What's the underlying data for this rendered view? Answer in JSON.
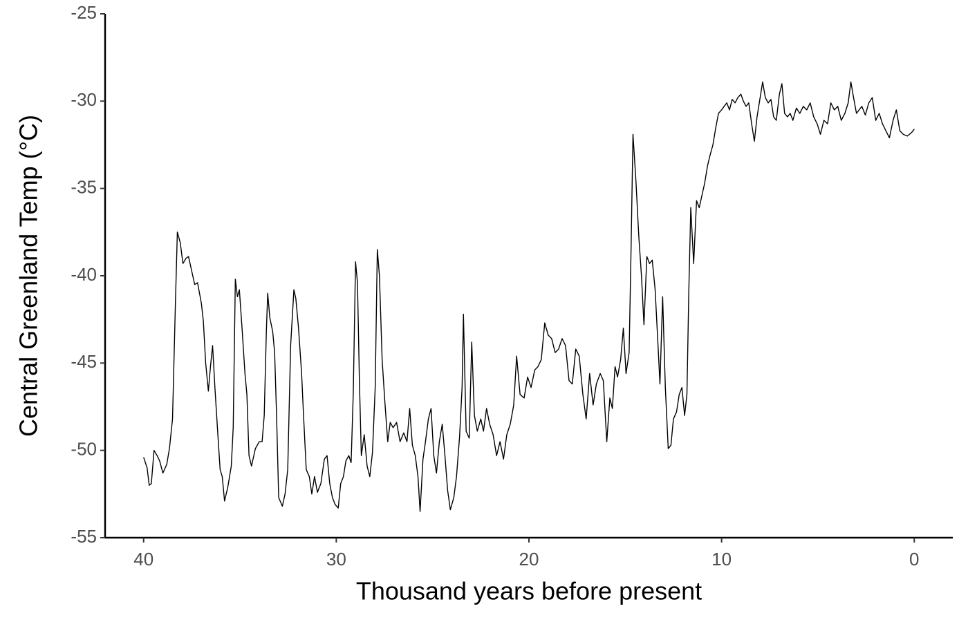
{
  "chart_data": {
    "type": "line",
    "x_label": "Thousand years before present",
    "y_label": "Central Greenland Temp (°C)",
    "color": "#000000",
    "xlim": [
      42,
      -2
    ],
    "xticks": [
      40,
      30,
      20,
      10,
      0
    ],
    "ylim": [
      -55,
      -25
    ],
    "yticks": [
      -55,
      -50,
      -45,
      -40,
      -35,
      -30,
      -25
    ],
    "grid": false,
    "x": [
      40,
      39.82,
      39.71,
      39.6,
      39.46,
      39.3,
      39.17,
      39.0,
      38.8,
      38.66,
      38.5,
      38.36,
      38.25,
      38.1,
      37.96,
      37.8,
      37.67,
      37.53,
      37.35,
      37.2,
      37.0,
      36.9,
      36.78,
      36.64,
      36.53,
      36.42,
      36.3,
      36.17,
      36.03,
      35.92,
      35.8,
      35.63,
      35.45,
      35.35,
      35.24,
      35.13,
      35.03,
      34.88,
      34.74,
      34.64,
      34.53,
      34.4,
      34.2,
      34.0,
      33.85,
      33.74,
      33.63,
      33.56,
      33.45,
      33.3,
      33.2,
      33.1,
      32.99,
      32.8,
      32.66,
      32.52,
      32.37,
      32.2,
      32.1,
      31.96,
      31.8,
      31.7,
      31.56,
      31.4,
      31.27,
      31.13,
      30.98,
      30.8,
      30.62,
      30.48,
      30.34,
      30.2,
      30.06,
      29.9,
      29.77,
      29.63,
      29.5,
      29.35,
      29.23,
      29.12,
      29.0,
      28.9,
      28.8,
      28.7,
      28.55,
      28.4,
      28.26,
      28.12,
      27.98,
      27.87,
      27.76,
      27.62,
      27.48,
      27.33,
      27.2,
      27.05,
      26.87,
      26.69,
      26.5,
      26.33,
      26.19,
      26.05,
      25.9,
      25.76,
      25.65,
      25.5,
      25.37,
      25.22,
      25.08,
      24.94,
      24.8,
      24.65,
      24.5,
      24.36,
      24.22,
      24.08,
      23.9,
      23.76,
      23.6,
      23.47,
      23.4,
      23.26,
      23.1,
      22.97,
      22.83,
      22.68,
      22.5,
      22.36,
      22.2,
      22.04,
      21.86,
      21.68,
      21.5,
      21.32,
      21.15,
      20.97,
      20.79,
      20.64,
      20.46,
      20.25,
      20.07,
      19.89,
      19.7,
      19.53,
      19.36,
      19.18,
      19.0,
      18.82,
      18.64,
      18.46,
      18.28,
      18.1,
      17.92,
      17.75,
      17.57,
      17.39,
      17.2,
      17.03,
      16.85,
      16.67,
      16.5,
      16.3,
      16.14,
      15.96,
      15.8,
      15.67,
      15.53,
      15.4,
      15.24,
      15.1,
      14.96,
      14.8,
      14.7,
      14.6,
      14.45,
      14.3,
      14.16,
      14.03,
      13.88,
      13.74,
      13.6,
      13.45,
      13.3,
      13.2,
      13.06,
      12.92,
      12.77,
      12.63,
      12.5,
      12.34,
      12.2,
      12.06,
      11.92,
      11.8,
      11.7,
      11.6,
      11.45,
      11.3,
      11.16,
      11.0,
      10.88,
      10.73,
      10.6,
      10.45,
      10.3,
      10.16,
      10.0,
      9.87,
      9.73,
      9.59,
      9.45,
      9.3,
      9.16,
      9.0,
      8.87,
      8.73,
      8.59,
      8.44,
      8.3,
      8.16,
      8.0,
      7.87,
      7.73,
      7.58,
      7.44,
      7.3,
      7.16,
      7.0,
      6.87,
      6.73,
      6.58,
      6.44,
      6.3,
      6.12,
      5.94,
      5.76,
      5.58,
      5.4,
      5.22,
      5.04,
      4.87,
      4.69,
      4.5,
      4.33,
      4.15,
      3.97,
      3.79,
      3.6,
      3.43,
      3.29,
      3.15,
      3.0,
      2.86,
      2.72,
      2.54,
      2.36,
      2.18,
      2.0,
      1.82,
      1.65,
      1.47,
      1.29,
      1.1,
      0.93,
      0.75,
      0.57,
      0.36,
      0.14,
      0
    ],
    "values": [
      -50.4,
      -51.0,
      -52.0,
      -51.9,
      -50.0,
      -50.3,
      -50.6,
      -51.3,
      -50.8,
      -49.9,
      -48.2,
      -42.0,
      -37.5,
      -38.1,
      -39.3,
      -39.0,
      -38.9,
      -39.6,
      -40.5,
      -40.4,
      -41.6,
      -42.6,
      -45.0,
      -46.6,
      -45.2,
      -44.0,
      -46.4,
      -48.7,
      -51.1,
      -51.5,
      -52.9,
      -52.1,
      -50.9,
      -48.7,
      -40.2,
      -41.2,
      -40.8,
      -43.2,
      -45.6,
      -46.8,
      -50.3,
      -50.9,
      -49.9,
      -49.5,
      -49.5,
      -48.0,
      -43.2,
      -41.0,
      -42.4,
      -43.2,
      -44.4,
      -48.0,
      -52.7,
      -53.2,
      -52.5,
      -51.1,
      -44.0,
      -40.8,
      -41.3,
      -43.0,
      -45.6,
      -48.0,
      -51.1,
      -51.5,
      -52.5,
      -51.5,
      -52.4,
      -51.9,
      -50.5,
      -50.3,
      -51.9,
      -52.7,
      -53.1,
      -53.3,
      -51.9,
      -51.5,
      -50.6,
      -50.3,
      -50.7,
      -46.8,
      -39.2,
      -40.4,
      -46.0,
      -50.3,
      -49.1,
      -50.9,
      -51.5,
      -50.1,
      -46.4,
      -38.5,
      -40.0,
      -44.8,
      -47.2,
      -49.5,
      -48.4,
      -48.7,
      -48.4,
      -49.5,
      -49.0,
      -49.5,
      -47.6,
      -49.7,
      -50.3,
      -51.5,
      -53.5,
      -50.5,
      -49.5,
      -48.2,
      -47.6,
      -50.3,
      -51.3,
      -49.5,
      -48.5,
      -50.3,
      -52.3,
      -53.4,
      -52.7,
      -51.5,
      -49.2,
      -46.4,
      -42.2,
      -48.9,
      -49.3,
      -43.8,
      -48.0,
      -48.9,
      -48.2,
      -48.9,
      -47.6,
      -48.5,
      -49.1,
      -50.3,
      -49.5,
      -50.5,
      -49.1,
      -48.5,
      -47.4,
      -44.6,
      -46.8,
      -47.0,
      -45.8,
      -46.4,
      -45.4,
      -45.2,
      -44.8,
      -42.7,
      -43.4,
      -43.6,
      -44.4,
      -44.2,
      -43.6,
      -44.0,
      -46.0,
      -46.2,
      -44.2,
      -44.6,
      -46.8,
      -48.2,
      -45.6,
      -47.4,
      -46.2,
      -45.6,
      -46.0,
      -49.5,
      -47.0,
      -47.6,
      -45.2,
      -45.8,
      -44.8,
      -43.0,
      -45.6,
      -44.4,
      -38.5,
      -31.9,
      -34.5,
      -37.7,
      -40.0,
      -42.8,
      -38.9,
      -39.3,
      -39.1,
      -40.8,
      -44.0,
      -46.2,
      -41.2,
      -46.4,
      -49.9,
      -49.7,
      -48.2,
      -47.8,
      -46.8,
      -46.4,
      -48.0,
      -46.8,
      -40.8,
      -36.1,
      -39.3,
      -35.7,
      -36.1,
      -35.3,
      -34.7,
      -33.7,
      -33.1,
      -32.5,
      -31.5,
      -30.7,
      -30.5,
      -30.3,
      -30.1,
      -30.5,
      -29.9,
      -30.1,
      -29.8,
      -29.6,
      -30.0,
      -30.3,
      -30.1,
      -31.3,
      -32.3,
      -30.9,
      -29.8,
      -28.9,
      -29.8,
      -30.1,
      -29.9,
      -30.9,
      -31.1,
      -29.6,
      -29.0,
      -30.7,
      -30.9,
      -30.7,
      -31.1,
      -30.4,
      -30.7,
      -30.3,
      -30.5,
      -30.1,
      -30.9,
      -31.3,
      -31.9,
      -31.1,
      -31.3,
      -30.1,
      -30.5,
      -30.3,
      -31.1,
      -30.7,
      -30.1,
      -28.9,
      -29.8,
      -30.7,
      -30.5,
      -30.3,
      -30.8,
      -30.1,
      -29.8,
      -31.1,
      -30.7,
      -31.3,
      -31.7,
      -32.1,
      -31.1,
      -30.5,
      -31.7,
      -31.9,
      -32.0,
      -31.8,
      -31.6
    ]
  }
}
